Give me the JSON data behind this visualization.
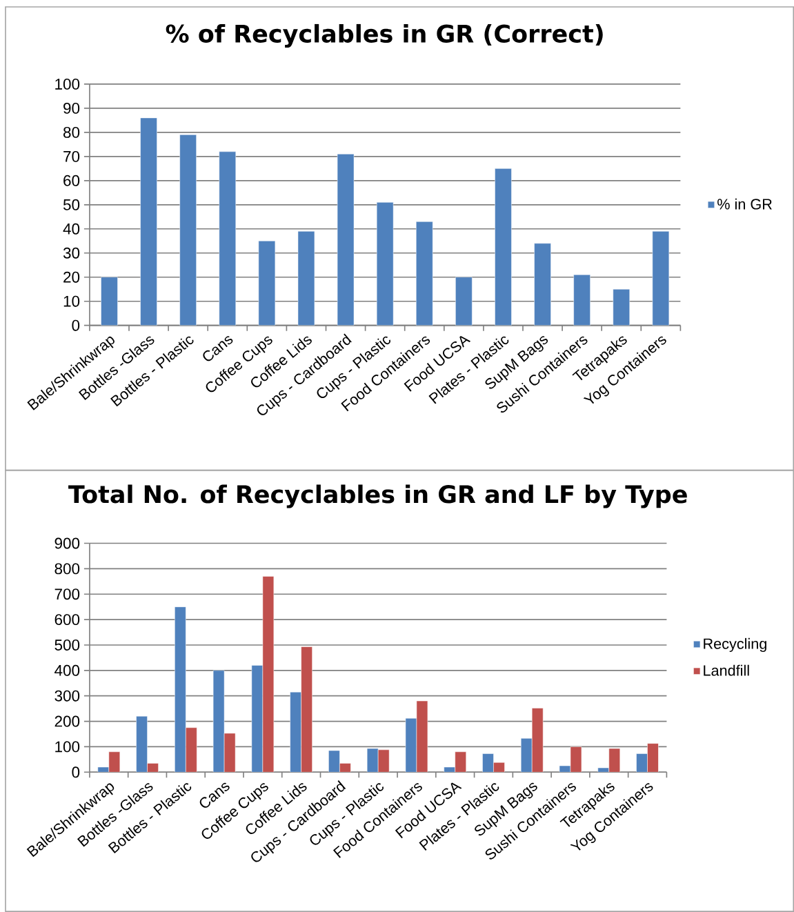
{
  "chart_data": [
    {
      "type": "bar",
      "title": "% of Recyclables in GR (Correct)",
      "categories": [
        "Bale/Shrinkwrap",
        "Bottles -Glass",
        "Bottles - Plastic",
        "Cans",
        "Coffee Cups",
        "Coffee Lids",
        "Cups - Cardboard",
        "Cups - Plastic",
        "Food Containers",
        "Food UCSA",
        "Plates - Plastic",
        "SupM Bags",
        "Sushi Containers",
        "Tetrapaks",
        "Yog Containers"
      ],
      "series": [
        {
          "name": "% in GR",
          "color": "#4f81bd",
          "values": [
            20,
            86,
            79,
            72,
            35,
            39,
            71,
            51,
            43,
            20,
            65,
            34,
            21,
            15,
            39
          ]
        }
      ],
      "ylim": [
        0,
        100
      ],
      "yticks": [
        0,
        10,
        20,
        30,
        40,
        50,
        60,
        70,
        80,
        90,
        100
      ],
      "grid": "y",
      "legend": "right"
    },
    {
      "type": "bar",
      "title": "Total No. of Recyclables in GR and LF by Type",
      "categories": [
        "Bale/Shrinkwrap",
        "Bottles -Glass",
        "Bottles - Plastic",
        "Cans",
        "Coffee Cups",
        "Coffee Lids",
        "Cups - Cardboard",
        "Cups - Plastic",
        "Food Containers",
        "Food UCSA",
        "Plates - Plastic",
        "SupM Bags",
        "Sushi Containers",
        "Tetrapaks",
        "Yog Containers"
      ],
      "series": [
        {
          "name": "Recycling",
          "color": "#4f81bd",
          "values": [
            20,
            220,
            650,
            400,
            420,
            315,
            85,
            93,
            212,
            20,
            73,
            133,
            25,
            17,
            73
          ]
        },
        {
          "name": "Landfill",
          "color": "#c0504d",
          "values": [
            80,
            35,
            175,
            153,
            770,
            493,
            35,
            88,
            280,
            80,
            38,
            252,
            100,
            93,
            113
          ]
        }
      ],
      "ylim": [
        0,
        900
      ],
      "yticks": [
        0,
        100,
        200,
        300,
        400,
        500,
        600,
        700,
        800,
        900
      ],
      "grid": "y",
      "legend": "right"
    }
  ]
}
